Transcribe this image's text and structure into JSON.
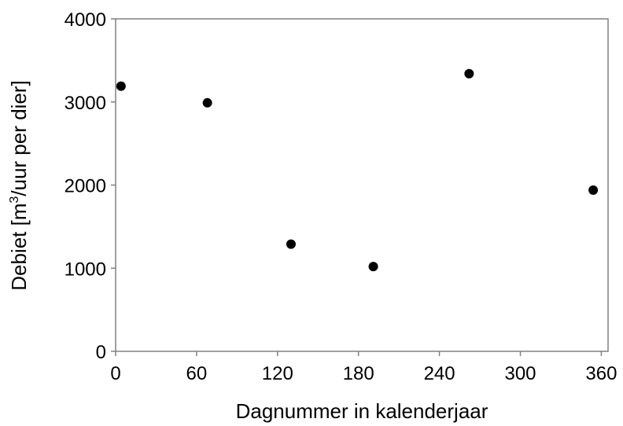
{
  "chart_data": {
    "type": "scatter",
    "title": "",
    "xlabel": "Dagnummer in kalenderjaar",
    "ylabel": {
      "prefix": "Debiet [m",
      "superscript": "3",
      "suffix": "/uur per dier]"
    },
    "xlim": [
      0,
      365
    ],
    "ylim": [
      0,
      4000
    ],
    "xticks": [
      0,
      60,
      120,
      180,
      240,
      300,
      360
    ],
    "yticks": [
      0,
      1000,
      2000,
      3000,
      4000
    ],
    "grid": false,
    "legend": "none",
    "series": [
      {
        "marker_color": "#000000",
        "x": [
          4,
          68,
          130,
          191,
          262,
          354
        ],
        "y": [
          3190,
          2990,
          1290,
          1020,
          3340,
          1940
        ]
      }
    ]
  }
}
